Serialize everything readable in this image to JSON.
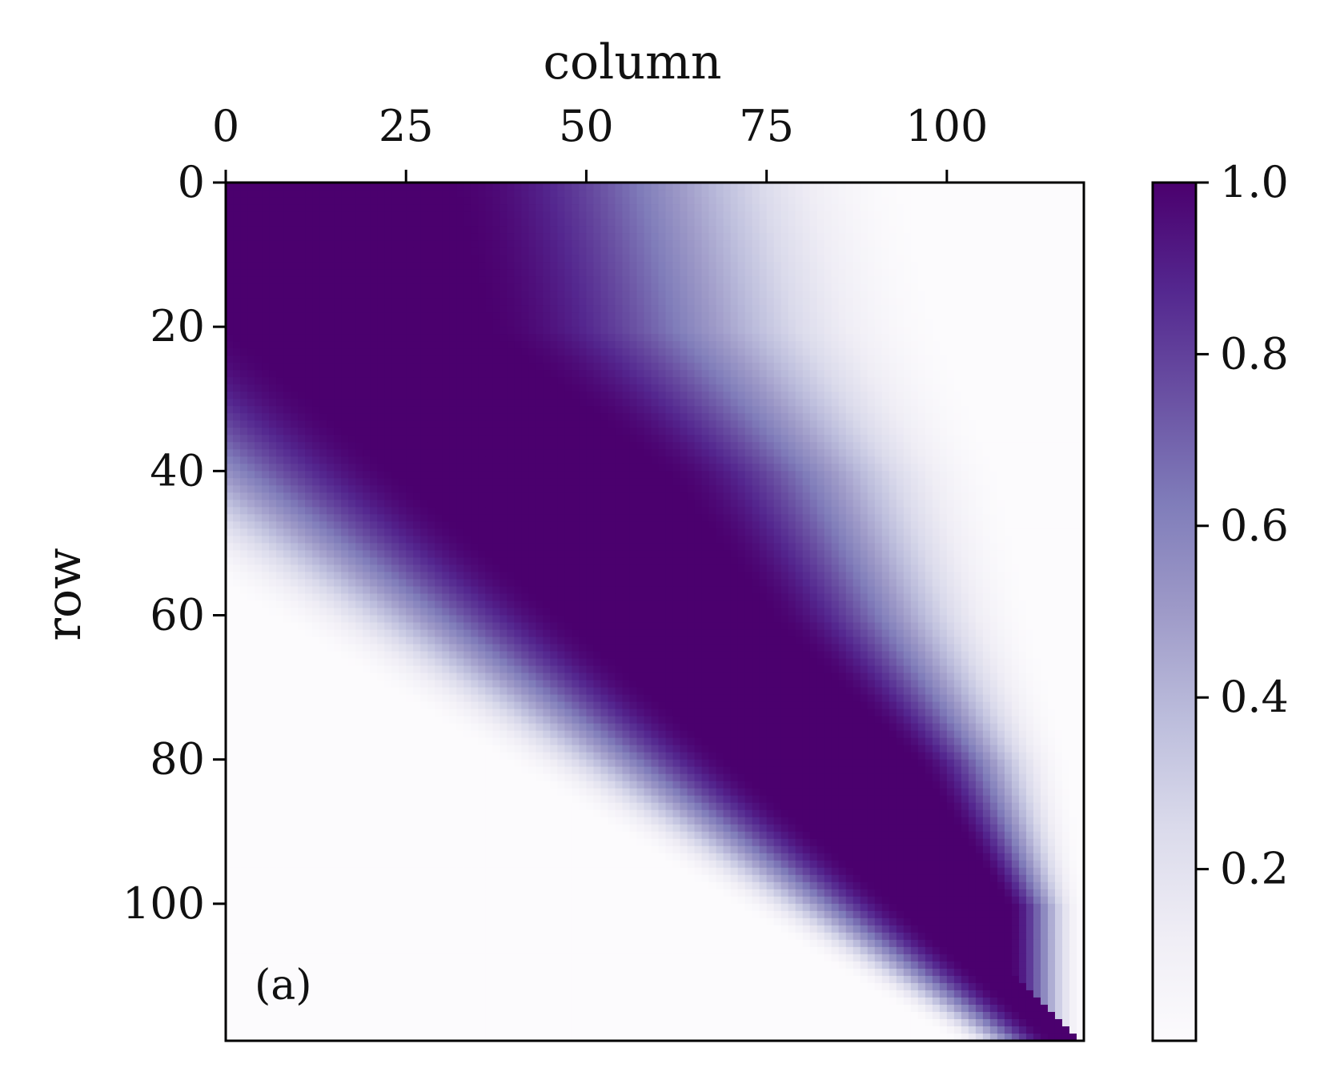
{
  "chart_data": {
    "type": "heatmap",
    "title": "",
    "xlabel": "column",
    "ylabel": "row",
    "panel_label": "(a)",
    "x_axis_position": "top",
    "y_axis_inverted": true,
    "n_rows": 119,
    "n_cols": 119,
    "xlim": [
      0,
      119
    ],
    "ylim": [
      119,
      0
    ],
    "x_ticks": [
      0,
      25,
      50,
      75,
      100
    ],
    "x_tick_labels": [
      "0",
      "25",
      "50",
      "75",
      "100"
    ],
    "y_ticks": [
      0,
      20,
      40,
      60,
      80,
      100
    ],
    "y_tick_labels": [
      "0",
      "20",
      "40",
      "60",
      "80",
      "100"
    ],
    "colorbar": {
      "vmin": 0,
      "vmax": 1,
      "ticks": [
        0.2,
        0.4,
        0.6,
        0.8,
        1.0
      ],
      "tick_labels": [
        "0.2",
        "0.4",
        "0.6",
        "0.8",
        "1.0"
      ],
      "colormap": "Purples",
      "colors": [
        "#fcfbfd",
        "#efedf5",
        "#dadaeb",
        "#bcbddc",
        "#9e9ac8",
        "#807dba",
        "#6a51a3",
        "#54278f",
        "#4b006e"
      ]
    },
    "description_of_values": "Values near 1.0 along a band from (row 0, column 0) to (row 118, column 118); band widens toward the top-left, decaying to ~0 far from the diagonal (top-right and bottom-left corners).",
    "approx_profile": [
      {
        "row": 0,
        "value_1_until_col": 30,
        "value_0_from_col": 95
      },
      {
        "row": 20,
        "value_1_until_col": 35,
        "value_0_from_col": 100
      },
      {
        "row": 40,
        "value_1_until_col": 60,
        "value_0_from_col": 108
      },
      {
        "row": 60,
        "value_1_until_col": 75,
        "value_0_from_col": 112
      },
      {
        "row": 80,
        "value_1_until_col": 95,
        "value_0_from_col": 117
      },
      {
        "row": 100,
        "value_1_until_col": 108,
        "value_0_from_col": 119
      }
    ]
  }
}
